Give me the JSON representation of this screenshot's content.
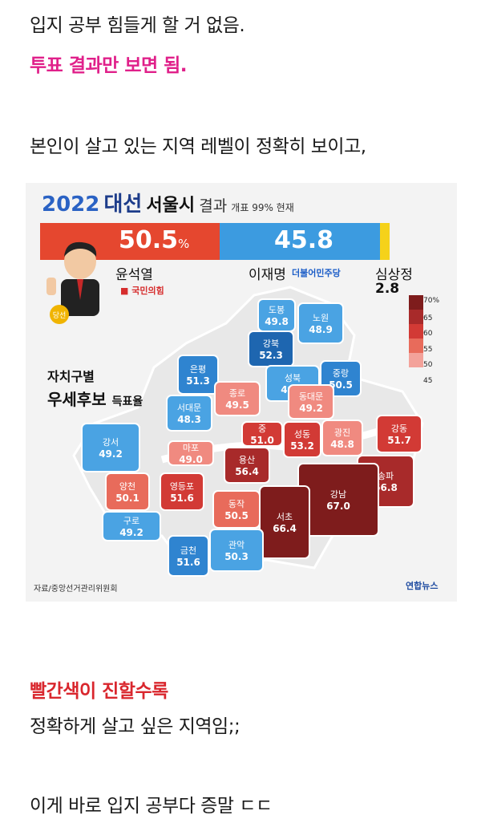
{
  "post": {
    "line1": "입지 공부 힘들게 할 거 없음.",
    "line2": "투표 결과만 보면 됨.",
    "line3": "본인이 살고 있는 지역 레벨이 정확히 보이고,",
    "line4": "빨간색이 진할수록",
    "line5": "정확하게 살고 싶은 지역임;;",
    "line6": "이게 바로 입지 공부다 증말 ㄷㄷ"
  },
  "figure": {
    "header_year": "2022",
    "header_title": "대선",
    "header_city": "서울시",
    "header_result": "결과",
    "header_sub": "개표 99% 현재",
    "yoon_pct": "50.5",
    "pct_sign": "%",
    "lee_pct": "45.8",
    "yoon_name": "윤석열",
    "yoon_party": "국민의힘",
    "lee_name": "이재명",
    "lee_party": "더불어민주당",
    "sim_name": "심상정",
    "sim_pct": "2.8",
    "elected_badge": "당선",
    "legend_title": "자치구별",
    "legend_main": "우세후보",
    "legend_unit": "득표율",
    "source": "자료/중앙선거관리위원회",
    "logo": "연합뉴스",
    "scale_labels": [
      "70%",
      "65",
      "60",
      "55",
      "50",
      "45"
    ],
    "colors": {
      "red": "#e5472f",
      "blue": "#3c9be0",
      "yellow": "#f5d21a",
      "brand_blue": "#2a62c4",
      "dark_red": "#7e1c1c"
    }
  },
  "districts": [
    {
      "name": "도봉",
      "value": "49.8",
      "winner": "blue"
    },
    {
      "name": "노원",
      "value": "48.9",
      "winner": "blue"
    },
    {
      "name": "강북",
      "value": "52.3",
      "winner": "blue"
    },
    {
      "name": "은평",
      "value": "51.3",
      "winner": "blue"
    },
    {
      "name": "성북",
      "value": "49.3",
      "winner": "blue"
    },
    {
      "name": "중랑",
      "value": "50.5",
      "winner": "blue"
    },
    {
      "name": "종로",
      "value": "49.5",
      "winner": "red"
    },
    {
      "name": "동대문",
      "value": "49.2",
      "winner": "red"
    },
    {
      "name": "서대문",
      "value": "48.3",
      "winner": "blue"
    },
    {
      "name": "강동",
      "value": "51.7",
      "winner": "red"
    },
    {
      "name": "중",
      "value": "51.0",
      "winner": "red"
    },
    {
      "name": "성동",
      "value": "53.2",
      "winner": "red"
    },
    {
      "name": "광진",
      "value": "48.8",
      "winner": "red"
    },
    {
      "name": "강서",
      "value": "49.2",
      "winner": "blue"
    },
    {
      "name": "마포",
      "value": "49.0",
      "winner": "red"
    },
    {
      "name": "용산",
      "value": "56.4",
      "winner": "red"
    },
    {
      "name": "송파",
      "value": "56.8",
      "winner": "red"
    },
    {
      "name": "양천",
      "value": "50.1",
      "winner": "red"
    },
    {
      "name": "영등포",
      "value": "51.6",
      "winner": "red"
    },
    {
      "name": "강남",
      "value": "67.0",
      "winner": "red"
    },
    {
      "name": "동작",
      "value": "50.5",
      "winner": "red"
    },
    {
      "name": "서초",
      "value": "66.4",
      "winner": "red"
    },
    {
      "name": "구로",
      "value": "49.2",
      "winner": "blue"
    },
    {
      "name": "관악",
      "value": "50.3",
      "winner": "blue"
    },
    {
      "name": "금천",
      "value": "51.6",
      "winner": "blue"
    }
  ]
}
